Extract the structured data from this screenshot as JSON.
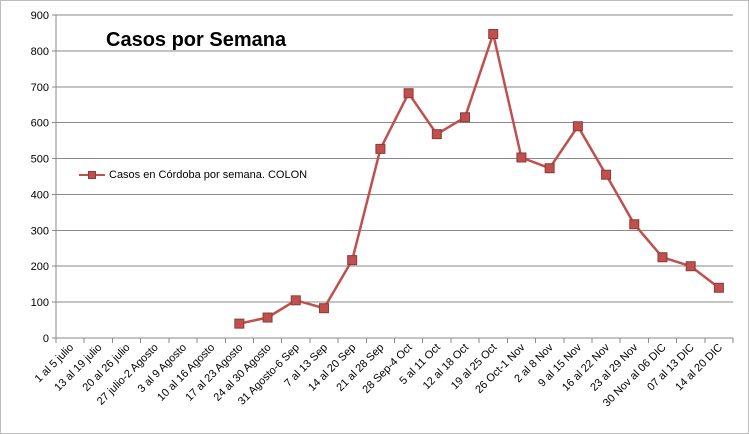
{
  "chart_data": {
    "type": "line",
    "title": "Casos por Semana",
    "xlabel": "",
    "ylabel": "",
    "ylim": [
      0,
      900
    ],
    "yticks": [
      0,
      100,
      200,
      300,
      400,
      500,
      600,
      700,
      800,
      900
    ],
    "grid": true,
    "legend_position": "left",
    "categories": [
      "1 al 5 julio",
      "13 al 19 julio",
      "20 al 26 julio",
      "27 julio-2 Agosto",
      "3 al 9 Agosto",
      "10 al 16 Agosto",
      "17 al 23 Agosto",
      "24 al 30 Agosto",
      "31 Agosto-6 Sep",
      "7 al 13 Sep",
      "14 al 20 Sep",
      "21 al 28 Sep",
      "28 Sep-4 Oct",
      "5 al 11 Oct",
      "12 al 18 Oct",
      "19 al 25 Oct",
      "26 Oct-1 Nov",
      "2 al 8 Nov",
      "9 al 15 Nov",
      "16 al 22 Nov",
      "23 al 29 Nov",
      "30 Nov al 06 DIC",
      "07 al 13 DIC",
      "14 al 20 DIC"
    ],
    "series": [
      {
        "name": "Casos en Córdoba por semana. COLON",
        "color": "#C0504D",
        "values": [
          null,
          null,
          null,
          null,
          null,
          null,
          40,
          57,
          105,
          83,
          217,
          527,
          682,
          568,
          615,
          847,
          503,
          473,
          590,
          455,
          317,
          225,
          200,
          140
        ]
      }
    ]
  }
}
